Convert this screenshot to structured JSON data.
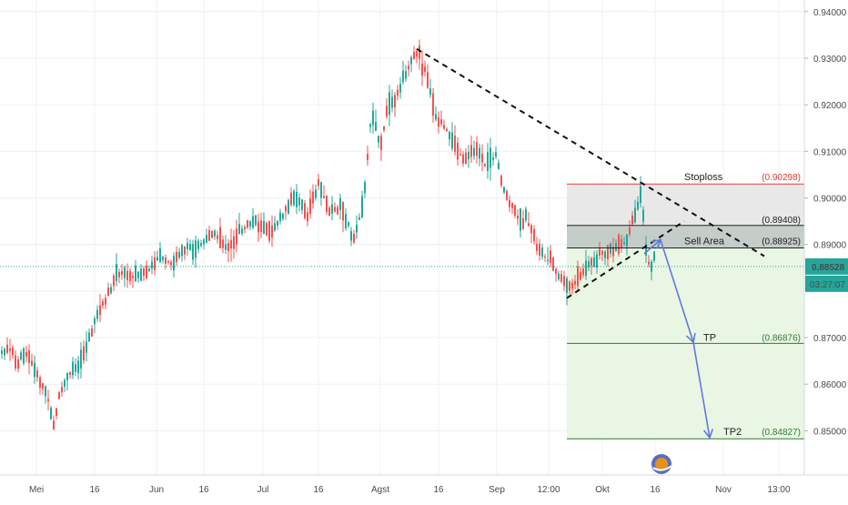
{
  "chart_data": {
    "type": "candlestick",
    "y_range": [
      0.8405,
      0.9425
    ],
    "y_ticks": [
      {
        "value": 0.94,
        "label": "0.94000"
      },
      {
        "value": 0.93,
        "label": "0.93000"
      },
      {
        "value": 0.92,
        "label": "0.92000"
      },
      {
        "value": 0.91,
        "label": "0.91000"
      },
      {
        "value": 0.9,
        "label": "0.90000"
      },
      {
        "value": 0.89,
        "label": "0.89000"
      },
      {
        "value": 0.87,
        "label": "0.87000"
      },
      {
        "value": 0.86,
        "label": "0.86000"
      },
      {
        "value": 0.85,
        "label": "0.85000"
      }
    ],
    "x_ticks": [
      "Mei",
      "16",
      "Jun",
      "16",
      "Jul",
      "16",
      "Agst",
      "16",
      "Sep",
      "12:00",
      "Okt",
      "16",
      "Nov",
      "13:00"
    ],
    "price_path": [
      [
        0,
        0.8665
      ],
      [
        10,
        0.8675
      ],
      [
        20,
        0.865
      ],
      [
        30,
        0.867
      ],
      [
        42,
        0.861
      ],
      [
        52,
        0.858
      ],
      [
        58,
        0.8505
      ],
      [
        65,
        0.857
      ],
      [
        75,
        0.862
      ],
      [
        90,
        0.865
      ],
      [
        100,
        0.871
      ],
      [
        110,
        0.876
      ],
      [
        120,
        0.88
      ],
      [
        130,
        0.884
      ],
      [
        145,
        0.883
      ],
      [
        160,
        0.884
      ],
      [
        175,
        0.887
      ],
      [
        190,
        0.886
      ],
      [
        205,
        0.889
      ],
      [
        220,
        0.89
      ],
      [
        235,
        0.893
      ],
      [
        250,
        0.889
      ],
      [
        265,
        0.893
      ],
      [
        280,
        0.895
      ],
      [
        295,
        0.893
      ],
      [
        310,
        0.896
      ],
      [
        325,
        0.9
      ],
      [
        338,
        0.896
      ],
      [
        350,
        0.903
      ],
      [
        362,
        0.897
      ],
      [
        375,
        0.898
      ],
      [
        390,
        0.891
      ],
      [
        400,
        0.9
      ],
      [
        408,
        0.918
      ],
      [
        418,
        0.912
      ],
      [
        428,
        0.92
      ],
      [
        440,
        0.924
      ],
      [
        450,
        0.928
      ],
      [
        458,
        0.9315
      ],
      [
        468,
        0.927
      ],
      [
        478,
        0.918
      ],
      [
        490,
        0.915
      ],
      [
        500,
        0.911
      ],
      [
        510,
        0.908
      ],
      [
        520,
        0.911
      ],
      [
        532,
        0.907
      ],
      [
        545,
        0.909
      ],
      [
        555,
        0.901
      ],
      [
        568,
        0.896
      ],
      [
        580,
        0.895
      ],
      [
        592,
        0.889
      ],
      [
        605,
        0.886
      ],
      [
        615,
        0.883
      ],
      [
        628,
        0.881
      ],
      [
        640,
        0.884
      ],
      [
        650,
        0.886
      ],
      [
        660,
        0.888
      ],
      [
        672,
        0.889
      ],
      [
        685,
        0.89
      ],
      [
        695,
        0.895
      ],
      [
        705,
        0.901
      ],
      [
        710,
        0.889
      ],
      [
        714,
        0.885
      ],
      [
        720,
        0.888
      ]
    ],
    "current_price": {
      "value": 0.88528,
      "label": "0.88528",
      "countdown": "03:27:07",
      "color": "#26a69a"
    },
    "annotations": {
      "stoploss": {
        "label": "Stoploss",
        "value": 0.90298,
        "value_label": "(0.90298)",
        "color": "#e53935"
      },
      "level1": {
        "value": 0.89408,
        "value_label": "(0.89408)"
      },
      "sell_area": {
        "label": "Sell Area",
        "value": 0.88925,
        "value_label": "(0.88925)"
      },
      "tp": {
        "label": "TP",
        "value": 0.86876,
        "value_label": "(0.86876)",
        "color": "#2e7d32"
      },
      "tp2": {
        "label": "TP2",
        "value": 0.84827,
        "value_label": "(0.84827)",
        "color": "#2e7d32"
      }
    },
    "trendlines": [
      {
        "name": "descending-resistance",
        "from": [
          458,
          0.932
        ],
        "to": [
          840,
          0.8875
        ],
        "style": "dashed"
      },
      {
        "name": "ascending-support",
        "from": [
          623,
          0.8785
        ],
        "to": [
          752,
          0.895
        ],
        "style": "dashed"
      }
    ],
    "projection_path": [
      [
        708,
        0.888
      ],
      [
        726,
        0.891
      ],
      [
        762,
        0.869
      ],
      [
        780,
        0.8485
      ]
    ],
    "colors": {
      "up": "#26a69a",
      "down": "#ef5350",
      "projection": "#5c7bd9",
      "grid": "#eef0f3",
      "green_zone": "#e8f5e1",
      "sell_zone": "#bfc8c2",
      "risk_zone": "#e6e6e6"
    }
  }
}
